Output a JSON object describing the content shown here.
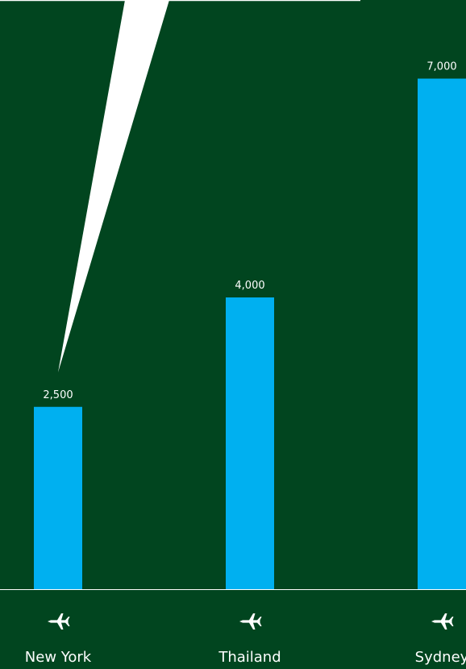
{
  "colors": {
    "background": "#01451f",
    "bar": "#00b0f0",
    "baseline": "#ffffff",
    "text": "#ffffff",
    "callout": "#ffffff"
  },
  "icons": {
    "category": "airplane-icon"
  },
  "chart_data": {
    "type": "bar",
    "categories": [
      "New York",
      "Thailand",
      "Sydney"
    ],
    "values": [
      2500,
      4000,
      7000
    ],
    "value_labels": [
      "2,500",
      "4,000",
      "7,000"
    ],
    "title": "",
    "xlabel": "",
    "ylabel": "",
    "ylim": [
      0,
      7500
    ],
    "grid": false,
    "legend": "none"
  }
}
